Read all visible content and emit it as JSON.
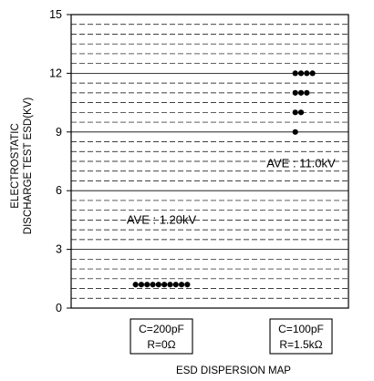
{
  "chart_data": {
    "type": "scatter",
    "title": "",
    "caption": "ESD DISPERSION MAP",
    "ylabel_lines": [
      "ELECTROSTATIC",
      "DISCHARGE TEST ESD(KV)"
    ],
    "ylim": [
      0,
      15
    ],
    "yticks": [
      0,
      3,
      6,
      9,
      12,
      15
    ],
    "minor_step": 0.5,
    "categories": [
      {
        "line1": "C=200pF",
        "line2": "R=0Ω"
      },
      {
        "line1": "C=100pF",
        "line2": "R=1.5kΩ"
      }
    ],
    "series": [
      {
        "category_index": 0,
        "label": "AVE : 1.20kV",
        "label_y": 4.3,
        "points": [
          [
            -5,
            1.2
          ],
          [
            -4,
            1.2
          ],
          [
            -3,
            1.2
          ],
          [
            -2,
            1.2
          ],
          [
            -1,
            1.2
          ],
          [
            0,
            1.2
          ],
          [
            1,
            1.2
          ],
          [
            2,
            1.2
          ],
          [
            3,
            1.2
          ],
          [
            4,
            1.2
          ]
        ]
      },
      {
        "category_index": 1,
        "label": "AVE : 11.0kV",
        "label_y": 7.2,
        "points": [
          [
            -1,
            12
          ],
          [
            0,
            12
          ],
          [
            1,
            12
          ],
          [
            2,
            12
          ],
          [
            -1,
            11
          ],
          [
            0,
            11
          ],
          [
            1,
            11
          ],
          [
            -1,
            10
          ],
          [
            0,
            10
          ],
          [
            -1,
            9
          ]
        ]
      }
    ]
  }
}
